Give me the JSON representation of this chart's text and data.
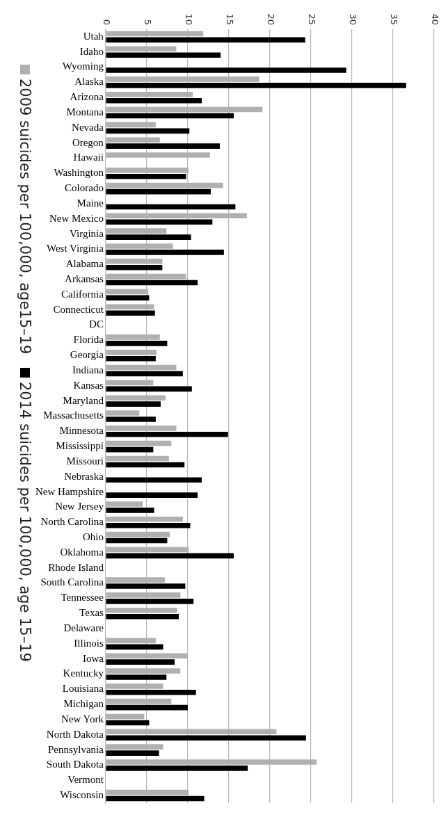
{
  "chart_data": {
    "type": "bar",
    "orientation": "horizontal",
    "categories": [
      "Utah",
      "Idaho",
      "Wyoming",
      "Alaska",
      "Arizona",
      "Montana",
      "Nevada",
      "Oregon",
      "Hawaii",
      "Washington",
      "Colorado",
      "Maine",
      "New Mexico",
      "Virginia",
      "West Virginia",
      "Alabama",
      "Arkansas",
      "California",
      "Connecticut",
      "DC",
      "Florida",
      "Georgia",
      "Indiana",
      "Kansas",
      "Maryland",
      "Massachusetts",
      "Minnesota",
      "Mississippi",
      "Missouri",
      "Nebraska",
      "New Hampshire",
      "New Jersey",
      "North Carolina",
      "Ohio",
      "Oklahoma",
      "Rhode Island",
      "South Carolina",
      "Tennessee",
      "Texas",
      "Delaware",
      "Illinois",
      "Iowa",
      "Kentucky",
      "Louisiana",
      "Michigan",
      "New York",
      "North Dakota",
      "Pennsylvania",
      "South Dakota",
      "Vermont",
      "Wisconsin"
    ],
    "series": [
      {
        "name": "2009 suicides per 100,000, age15–19",
        "color": "#b0b0b0",
        "values": [
          11.9,
          8.6,
          null,
          18.7,
          10.6,
          19.1,
          6.1,
          6.6,
          12.7,
          10.1,
          14.3,
          null,
          17.2,
          7.4,
          8.2,
          6.9,
          9.8,
          5.2,
          5.9,
          null,
          6.6,
          6.2,
          8.6,
          5.8,
          7.3,
          4.1,
          8.6,
          8.0,
          7.7,
          null,
          null,
          4.5,
          9.4,
          7.8,
          10.1,
          null,
          7.2,
          9.1,
          8.7,
          null,
          6.1,
          10.0,
          9.1,
          7.0,
          8.0,
          4.7,
          20.8,
          7.0,
          25.7,
          null,
          10.1
        ]
      },
      {
        "name": "2014 suicides per 100,000, age 15–19",
        "color": "#000000",
        "values": [
          24.3,
          14.0,
          29.3,
          36.6,
          11.7,
          15.6,
          10.2,
          13.9,
          null,
          9.8,
          12.8,
          15.8,
          13.0,
          10.4,
          14.4,
          6.9,
          11.2,
          5.3,
          6.0,
          null,
          7.5,
          6.1,
          9.4,
          10.5,
          6.7,
          6.1,
          14.9,
          5.8,
          9.6,
          11.7,
          11.2,
          5.9,
          10.3,
          7.5,
          15.6,
          null,
          9.7,
          10.7,
          8.9,
          null,
          7.0,
          8.4,
          7.4,
          11.0,
          10.0,
          5.3,
          24.4,
          6.5,
          17.3,
          null,
          12.0
        ]
      }
    ],
    "xlim": [
      0,
      40
    ],
    "xticks": [
      0,
      5,
      10,
      15,
      20,
      25,
      30,
      35,
      40
    ],
    "grid": "x",
    "legend": "left"
  }
}
